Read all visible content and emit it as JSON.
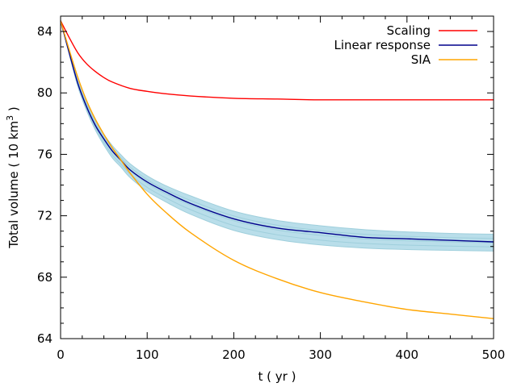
{
  "chart_data": {
    "type": "line",
    "xlabel": "t ( yr )",
    "ylabel": {
      "prefix": "Total volume ( 10 km",
      "superscript": "3",
      "suffix": " )"
    },
    "xlim": [
      0,
      500
    ],
    "ylim": [
      64,
      85
    ],
    "xticks": [
      0,
      100,
      200,
      300,
      400,
      500
    ],
    "yticks": [
      64,
      68,
      72,
      76,
      80,
      84
    ],
    "grid": false,
    "legend_position": "top-right",
    "series": [
      {
        "name": "Scaling",
        "color": "#ff0000",
        "x": [
          0,
          10,
          20,
          30,
          40,
          50,
          60,
          80,
          100,
          120,
          150,
          200,
          250,
          300,
          400,
          500
        ],
        "y": [
          84.7,
          83.6,
          82.6,
          81.9,
          81.4,
          81.0,
          80.7,
          80.3,
          80.1,
          79.95,
          79.8,
          79.65,
          79.6,
          79.55,
          79.55,
          79.55
        ]
      },
      {
        "name": "Linear response",
        "color": "#00008b",
        "x": [
          0,
          10,
          20,
          30,
          40,
          50,
          60,
          70,
          80,
          100,
          120,
          150,
          200,
          250,
          300,
          350,
          400,
          450,
          500
        ],
        "y": [
          84.7,
          82.6,
          80.6,
          79.1,
          77.9,
          77.0,
          76.2,
          75.6,
          75.0,
          74.2,
          73.6,
          72.8,
          71.8,
          71.2,
          70.9,
          70.6,
          70.5,
          70.4,
          70.3
        ]
      },
      {
        "name": "SIA",
        "color": "#ffa500",
        "x": [
          0,
          10,
          20,
          30,
          40,
          50,
          60,
          70,
          80,
          100,
          120,
          150,
          200,
          250,
          300,
          350,
          400,
          450,
          500
        ],
        "y": [
          84.7,
          82.8,
          81.0,
          79.5,
          78.3,
          77.3,
          76.4,
          75.6,
          74.8,
          73.4,
          72.3,
          70.9,
          69.1,
          67.9,
          67.0,
          66.4,
          65.9,
          65.6,
          65.3
        ]
      }
    ],
    "ensemble_band": {
      "color": "#add8e6",
      "x": [
        0,
        10,
        20,
        30,
        40,
        50,
        60,
        70,
        80,
        100,
        120,
        150,
        200,
        250,
        300,
        350,
        400,
        450,
        500
      ],
      "upper": [
        84.7,
        82.7,
        80.8,
        79.35,
        78.2,
        77.3,
        76.55,
        75.95,
        75.4,
        74.6,
        74.0,
        73.3,
        72.3,
        71.7,
        71.35,
        71.1,
        70.95,
        70.85,
        70.8
      ],
      "lower": [
        84.7,
        82.5,
        80.4,
        78.85,
        77.6,
        76.6,
        75.75,
        75.15,
        74.5,
        73.6,
        72.95,
        72.1,
        71.05,
        70.45,
        70.1,
        69.9,
        69.8,
        69.75,
        69.7
      ]
    }
  }
}
